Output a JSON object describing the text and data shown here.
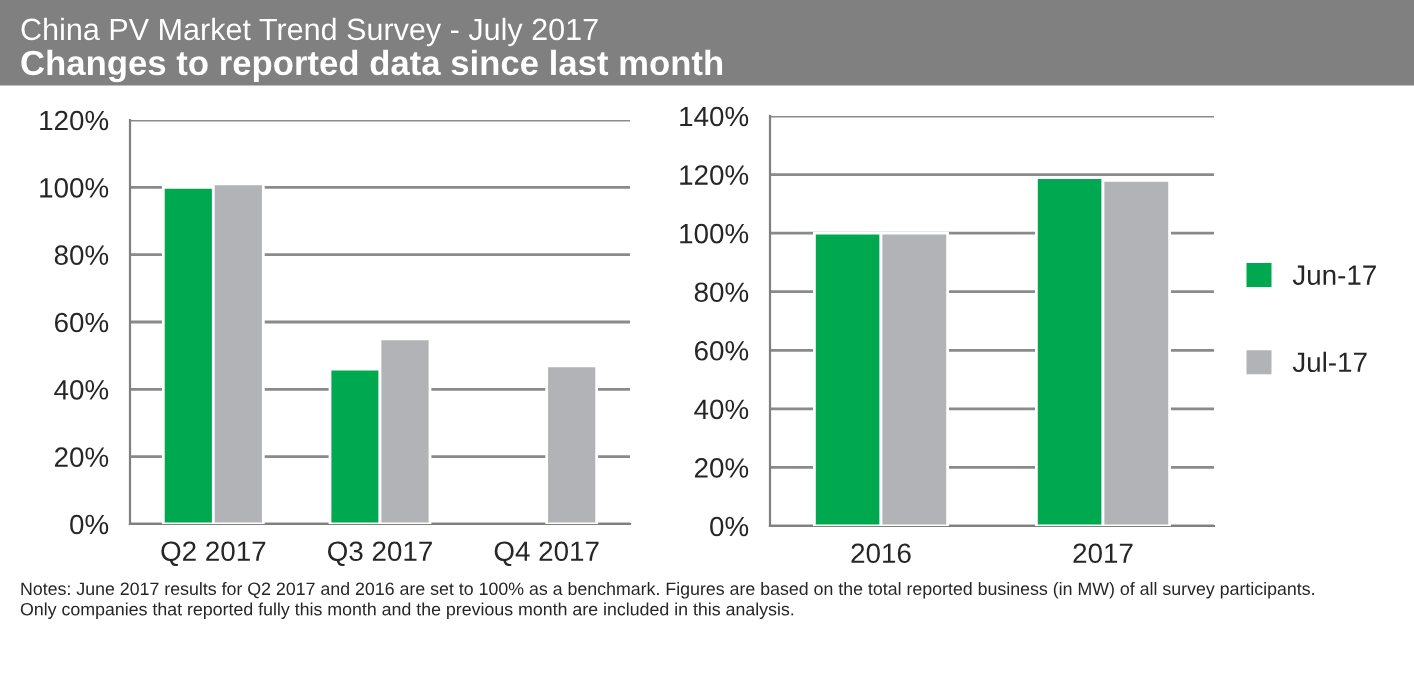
{
  "chart_data": [
    {
      "type": "bar",
      "title": "China PV Market Trend Survey - July 2017",
      "subtitle": "Changes to reported data since last month",
      "annotations": [
        "Notes: June 2017 results for Q2 2017 and 2016 are set to 100% as a benchmark. Figures are based on the total reported business (in MW) of all survey participants.\nOnly companies that reported fully this month and the previous month are included in this analysis."
      ],
      "categories": [
        "Q2 2017",
        "Q3 2017",
        "Q4 2017"
      ],
      "series": [
        {
          "color": "#00a84f",
          "values": [
            100,
            46,
            null
          ]
        },
        {
          "color": "#b1b3b6",
          "values": [
            101,
            55,
            47
          ]
        }
      ],
      "ylim": [
        0,
        120
      ],
      "yticks": [
        {
          "value": 0,
          "label": "0%"
        },
        {
          "value": 20,
          "label": "20%"
        },
        {
          "value": 40,
          "label": "40%"
        },
        {
          "value": 60,
          "label": "60%"
        },
        {
          "value": 80,
          "label": "80%"
        },
        {
          "value": 100,
          "label": "100%"
        },
        {
          "value": 120,
          "label": "120%"
        }
      ],
      "grid": "y",
      "legend": false
    },
    {
      "type": "bar",
      "categories": [
        "2016",
        "2017"
      ],
      "series": [
        {
          "name": "Jun-17",
          "color": "#00a84f",
          "values": [
            100,
            119
          ]
        },
        {
          "name": "Jul-17",
          "color": "#b1b3b6",
          "values": [
            100,
            118
          ]
        }
      ],
      "ylim": [
        0,
        140
      ],
      "yticks": [
        {
          "value": 0,
          "label": "0%"
        },
        {
          "value": 20,
          "label": "20%"
        },
        {
          "value": 40,
          "label": "40%"
        },
        {
          "value": 60,
          "label": "60%"
        },
        {
          "value": 80,
          "label": "80%"
        },
        {
          "value": 100,
          "label": "100%"
        },
        {
          "value": 120,
          "label": "120%"
        },
        {
          "value": 140,
          "label": "140%"
        }
      ],
      "grid": "y",
      "legend": "right"
    }
  ]
}
